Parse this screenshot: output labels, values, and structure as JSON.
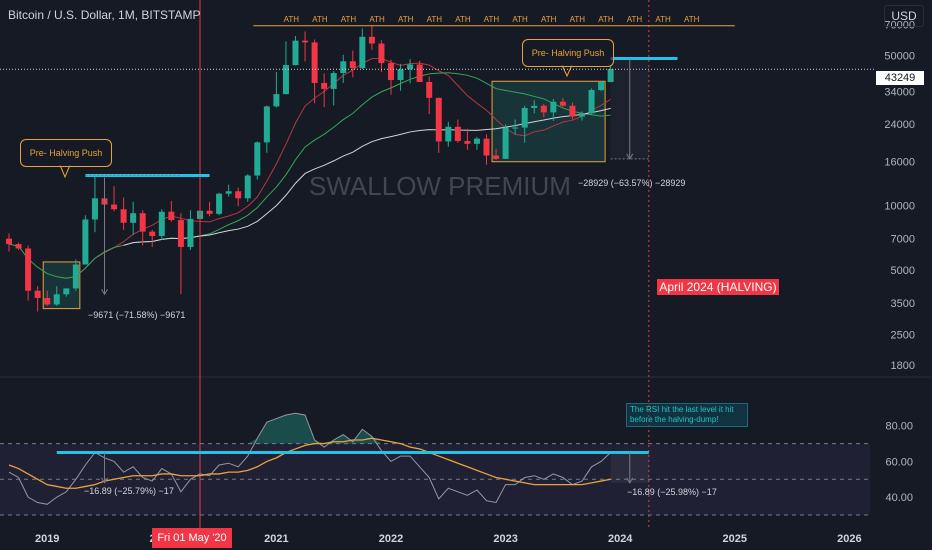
{
  "header": {
    "symbol_title": "Bitcoin / U.S. Dollar, 1M, BITSTAMP",
    "currency": "USD"
  },
  "price_tag": "43249",
  "watermark": "SWALLOW PREMIUM",
  "annotations": {
    "pre_halving_left": "Pre- Halving Push",
    "pre_halving_right": "Pre- Halving Push",
    "ath_label": "ATH",
    "halving": "April 2024 (HALVING)",
    "date_marker": "Fri 01 May '20",
    "measure_left": "−9671 (−71.58%) −9671",
    "measure_right": "−28929 (−63.57%) −28929",
    "rsi_measure_left": "−16.89 (−25.79%) −17",
    "rsi_measure_right": "−16.89 (−25.98%) −17",
    "rsi_note": "The RSI hit the last level it hit before the halving-dump!"
  },
  "colors": {
    "background": "#161a25",
    "up": "#22ab94",
    "down": "#f23645",
    "ma_red": "#b23a3f",
    "ma_green": "#33a852",
    "ma_white": "#d1d4dc",
    "accent_orange": "#e8a33d",
    "cyan": "#22c3e6",
    "rsi_line": "#9598a1",
    "rsi_ma": "#e8a33d"
  },
  "chart_data": [
    {
      "type": "candlestick",
      "title": "Bitcoin / U.S. Dollar, 1M, BITSTAMP",
      "yscale": "log",
      "ylim": [
        1800,
        75000
      ],
      "y_ticks": [
        "70000",
        "50000",
        "34000",
        "24000",
        "16000",
        "10000",
        "7000",
        "5000",
        "3500",
        "2500",
        "1800"
      ],
      "x_ticks": [
        "2019",
        "2020",
        "2021",
        "2022",
        "2023",
        "2024",
        "2025",
        "2026"
      ],
      "last_price": 43249,
      "candles": [
        {
          "date": "2018-09",
          "o": 7000,
          "h": 7400,
          "l": 6100,
          "c": 6600
        },
        {
          "date": "2018-10",
          "o": 6600,
          "h": 6700,
          "l": 6200,
          "c": 6300
        },
        {
          "date": "2018-11",
          "o": 6300,
          "h": 6500,
          "l": 3600,
          "c": 4000
        },
        {
          "date": "2018-12",
          "o": 4000,
          "h": 4200,
          "l": 3200,
          "c": 3700
        },
        {
          "date": "2019-01",
          "o": 3700,
          "h": 4000,
          "l": 3400,
          "c": 3450
        },
        {
          "date": "2019-02",
          "o": 3450,
          "h": 4200,
          "l": 3400,
          "c": 3850
        },
        {
          "date": "2019-03",
          "o": 3850,
          "h": 4100,
          "l": 3750,
          "c": 4100
        },
        {
          "date": "2019-04",
          "o": 4100,
          "h": 5600,
          "l": 4000,
          "c": 5300
        },
        {
          "date": "2019-05",
          "o": 5300,
          "h": 9000,
          "l": 5300,
          "c": 8600
        },
        {
          "date": "2019-06",
          "o": 8600,
          "h": 13800,
          "l": 7500,
          "c": 10800
        },
        {
          "date": "2019-07",
          "o": 10800,
          "h": 13200,
          "l": 9100,
          "c": 10100
        },
        {
          "date": "2019-08",
          "o": 10100,
          "h": 12300,
          "l": 9400,
          "c": 9600
        },
        {
          "date": "2019-09",
          "o": 9600,
          "h": 10900,
          "l": 7700,
          "c": 8300
        },
        {
          "date": "2019-10",
          "o": 8300,
          "h": 10400,
          "l": 7300,
          "c": 9200
        },
        {
          "date": "2019-11",
          "o": 9200,
          "h": 9500,
          "l": 6500,
          "c": 7550
        },
        {
          "date": "2019-12",
          "o": 7550,
          "h": 7700,
          "l": 6400,
          "c": 7200
        },
        {
          "date": "2020-01",
          "o": 7200,
          "h": 9600,
          "l": 6900,
          "c": 9350
        },
        {
          "date": "2020-02",
          "o": 9350,
          "h": 10500,
          "l": 8400,
          "c": 8550
        },
        {
          "date": "2020-03",
          "o": 8550,
          "h": 9200,
          "l": 3850,
          "c": 6400
        },
        {
          "date": "2020-04",
          "o": 6400,
          "h": 9500,
          "l": 6200,
          "c": 8650
        },
        {
          "date": "2020-05",
          "o": 8650,
          "h": 10100,
          "l": 8100,
          "c": 9450
        },
        {
          "date": "2020-06",
          "o": 9450,
          "h": 10400,
          "l": 8900,
          "c": 9140
        },
        {
          "date": "2020-07",
          "o": 9140,
          "h": 11450,
          "l": 9000,
          "c": 11350
        },
        {
          "date": "2020-08",
          "o": 11350,
          "h": 12500,
          "l": 11000,
          "c": 11650
        },
        {
          "date": "2020-09",
          "o": 11650,
          "h": 12100,
          "l": 9900,
          "c": 10800
        },
        {
          "date": "2020-10",
          "o": 10800,
          "h": 14000,
          "l": 10400,
          "c": 13800
        },
        {
          "date": "2020-11",
          "o": 13800,
          "h": 19900,
          "l": 13200,
          "c": 19700
        },
        {
          "date": "2020-12",
          "o": 19700,
          "h": 29300,
          "l": 17600,
          "c": 29000
        },
        {
          "date": "2021-01",
          "o": 29000,
          "h": 42000,
          "l": 28700,
          "c": 33100
        },
        {
          "date": "2021-02",
          "o": 33100,
          "h": 58400,
          "l": 33000,
          "c": 45200
        },
        {
          "date": "2021-03",
          "o": 45200,
          "h": 61800,
          "l": 45000,
          "c": 58800
        },
        {
          "date": "2021-04",
          "o": 58800,
          "h": 65000,
          "l": 47000,
          "c": 57700
        },
        {
          "date": "2021-05",
          "o": 57700,
          "h": 59500,
          "l": 30000,
          "c": 37300
        },
        {
          "date": "2021-06",
          "o": 37300,
          "h": 41300,
          "l": 28800,
          "c": 35000
        },
        {
          "date": "2021-07",
          "o": 35000,
          "h": 42400,
          "l": 29300,
          "c": 41500
        },
        {
          "date": "2021-08",
          "o": 41500,
          "h": 50500,
          "l": 37300,
          "c": 47100
        },
        {
          "date": "2021-09",
          "o": 47100,
          "h": 52900,
          "l": 39600,
          "c": 43800
        },
        {
          "date": "2021-10",
          "o": 43800,
          "h": 67000,
          "l": 43300,
          "c": 61300
        },
        {
          "date": "2021-11",
          "o": 61300,
          "h": 69000,
          "l": 53200,
          "c": 57000
        },
        {
          "date": "2021-12",
          "o": 57000,
          "h": 59100,
          "l": 42000,
          "c": 46200
        },
        {
          "date": "2022-01",
          "o": 46200,
          "h": 47900,
          "l": 32900,
          "c": 38500
        },
        {
          "date": "2022-02",
          "o": 38500,
          "h": 45800,
          "l": 34300,
          "c": 43200
        },
        {
          "date": "2022-03",
          "o": 43200,
          "h": 48200,
          "l": 37200,
          "c": 45500
        },
        {
          "date": "2022-04",
          "o": 45500,
          "h": 47400,
          "l": 37700,
          "c": 37700
        },
        {
          "date": "2022-05",
          "o": 37700,
          "h": 40000,
          "l": 26700,
          "c": 31800
        },
        {
          "date": "2022-06",
          "o": 31800,
          "h": 31900,
          "l": 17600,
          "c": 19900
        },
        {
          "date": "2022-07",
          "o": 19900,
          "h": 24600,
          "l": 18800,
          "c": 23300
        },
        {
          "date": "2022-08",
          "o": 23300,
          "h": 25200,
          "l": 19600,
          "c": 20000
        },
        {
          "date": "2022-09",
          "o": 20000,
          "h": 22800,
          "l": 18200,
          "c": 19400
        },
        {
          "date": "2022-10",
          "o": 19400,
          "h": 20900,
          "l": 18200,
          "c": 20500
        },
        {
          "date": "2022-11",
          "o": 20500,
          "h": 21500,
          "l": 15500,
          "c": 17100
        },
        {
          "date": "2022-12",
          "o": 17100,
          "h": 18400,
          "l": 16300,
          "c": 16500
        },
        {
          "date": "2023-01",
          "o": 16500,
          "h": 23900,
          "l": 16500,
          "c": 23100
        },
        {
          "date": "2023-02",
          "o": 23100,
          "h": 25200,
          "l": 21400,
          "c": 23100
        },
        {
          "date": "2023-03",
          "o": 23100,
          "h": 29200,
          "l": 19600,
          "c": 28500
        },
        {
          "date": "2023-04",
          "o": 28500,
          "h": 31000,
          "l": 26900,
          "c": 29200
        },
        {
          "date": "2023-05",
          "o": 29200,
          "h": 29800,
          "l": 25800,
          "c": 27200
        },
        {
          "date": "2023-06",
          "o": 27200,
          "h": 31400,
          "l": 24800,
          "c": 30500
        },
        {
          "date": "2023-07",
          "o": 30500,
          "h": 31800,
          "l": 28900,
          "c": 29200
        },
        {
          "date": "2023-08",
          "o": 29200,
          "h": 30200,
          "l": 25300,
          "c": 26000
        },
        {
          "date": "2023-09",
          "o": 26000,
          "h": 27500,
          "l": 24900,
          "c": 26900
        },
        {
          "date": "2023-10",
          "o": 26900,
          "h": 35200,
          "l": 26600,
          "c": 34600
        },
        {
          "date": "2023-11",
          "o": 34600,
          "h": 38000,
          "l": 34100,
          "c": 37700
        },
        {
          "date": "2023-12",
          "o": 37700,
          "h": 44700,
          "l": 37600,
          "c": 43249
        }
      ]
    },
    {
      "type": "line",
      "title": "RSI",
      "ylim": [
        30,
        100
      ],
      "y_ticks": [
        "80.00",
        "60.00",
        "40.00"
      ],
      "levels": [
        70,
        50,
        30
      ],
      "rsi": [
        54,
        51,
        40,
        37,
        36,
        40,
        43,
        50,
        58,
        65,
        62,
        60,
        54,
        57,
        51,
        49,
        56,
        53,
        43,
        50,
        53,
        52,
        58,
        59,
        57,
        63,
        73,
        82,
        84,
        86,
        87,
        86,
        72,
        68,
        72,
        75,
        71,
        78,
        74,
        66,
        60,
        63,
        63,
        57,
        51,
        39,
        45,
        43,
        41,
        44,
        38,
        37,
        47,
        47,
        51,
        52,
        50,
        53,
        51,
        47,
        49,
        57,
        60,
        65
      ],
      "rsi_ma": [
        58,
        56,
        53,
        50,
        47,
        46,
        45,
        45,
        46,
        47,
        49,
        50,
        51,
        52,
        52,
        52,
        53,
        53,
        52,
        52,
        52,
        53,
        53,
        54,
        54,
        55,
        57,
        60,
        62,
        65,
        67,
        69,
        70,
        70,
        71,
        71,
        72,
        72,
        73,
        72,
        71,
        70,
        68,
        67,
        65,
        63,
        61,
        59,
        57,
        55,
        53,
        51,
        50,
        49,
        48,
        47,
        47,
        47,
        47,
        47,
        47,
        48,
        49,
        50
      ]
    }
  ]
}
